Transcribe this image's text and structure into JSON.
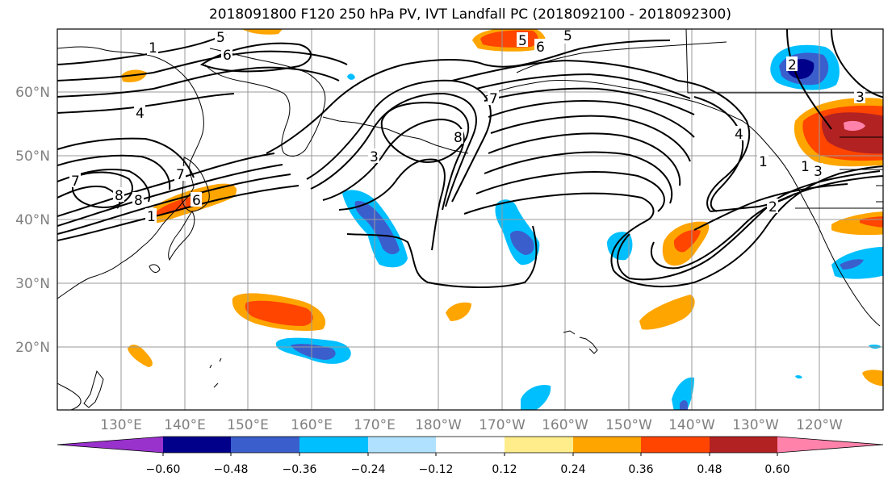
{
  "title": "2018091800 F120 250 hPa PV, IVT Landfall PC (2018092100 - 2018092300)",
  "lat_labels": [
    "60°N",
    "50°N",
    "40°N",
    "30°N",
    "20°N"
  ],
  "lon_labels": [
    "130°E",
    "140°E",
    "150°E",
    "160°E",
    "170°E",
    "180°W",
    "170°W",
    "160°W",
    "150°W",
    "140°W",
    "130°W",
    "120°W"
  ],
  "contour_labels": [
    "1",
    "5",
    "6",
    "5",
    "6",
    "5",
    "4",
    "7",
    "7",
    "8",
    "8",
    "3",
    "7",
    "8",
    "6",
    "4",
    "1",
    "1",
    "2",
    "3",
    "3",
    "2",
    "1"
  ],
  "colorbar": {
    "ticks": [
      "−0.60",
      "−0.48",
      "−0.36",
      "−0.24",
      "−0.12",
      "0.12",
      "0.24",
      "0.36",
      "0.48",
      "0.60"
    ],
    "colors": [
      "#9932cc",
      "#00008b",
      "#3a5fcd",
      "#00bfff",
      "#b0e2ff",
      "#ffffff",
      "#ffec8b",
      "#ffa500",
      "#ff4500",
      "#b22222",
      "#ff82ab"
    ]
  },
  "colors": {
    "contour": "#000000",
    "grid": "#999999",
    "coast": "#000000",
    "tick_label": "#808080"
  }
}
